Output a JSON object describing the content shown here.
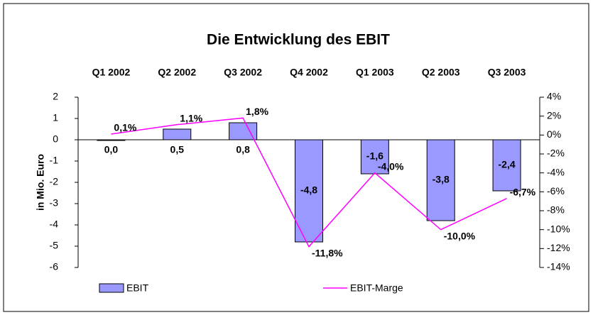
{
  "chart_data": {
    "type": "bar_line",
    "title": "Die Entwicklung des EBIT",
    "y_label": "in Mio. Euro",
    "categories": [
      "Q1 2002",
      "Q2 2002",
      "Q3 2002",
      "Q4 2002",
      "Q1 2003",
      "Q2 2003",
      "Q3 2003"
    ],
    "series": [
      {
        "name": "EBIT",
        "type": "bar",
        "color": "#9999ff",
        "values": [
          0.0,
          0.5,
          0.8,
          -4.8,
          -1.6,
          -3.8,
          -2.4
        ],
        "value_labels": [
          "0,0",
          "0,5",
          "0,8",
          "-4,8",
          "-1,6",
          "-3,8",
          "-2,4"
        ]
      },
      {
        "name": "EBIT-Marge",
        "type": "line",
        "axis": "y2",
        "color": "#ff00ff",
        "values": [
          0.1,
          1.1,
          1.8,
          -11.8,
          -4.0,
          -10.0,
          -6.7
        ],
        "value_labels": [
          "0,1%",
          "1,1%",
          "1,8%",
          "-11,8%",
          "-4,0%",
          "-10,0%",
          "-6,7%"
        ]
      }
    ],
    "ylim": [
      -6,
      2
    ],
    "yticks": [
      -6,
      -5,
      -4,
      -3,
      -2,
      -1,
      0,
      1,
      2
    ],
    "y2lim": [
      -14,
      4
    ],
    "y2ticks": [
      {
        "value": -14,
        "label": "-14%"
      },
      {
        "value": -12,
        "label": "-12%"
      },
      {
        "value": -10,
        "label": "-10%"
      },
      {
        "value": -8,
        "label": "-8%"
      },
      {
        "value": -6,
        "label": "-6%"
      },
      {
        "value": -4,
        "label": "-4%"
      },
      {
        "value": -2,
        "label": "-2%"
      },
      {
        "value": 0,
        "label": "0%"
      },
      {
        "value": 2,
        "label": "2%"
      },
      {
        "value": 4,
        "label": "4%"
      }
    ],
    "legend": "bottom"
  }
}
